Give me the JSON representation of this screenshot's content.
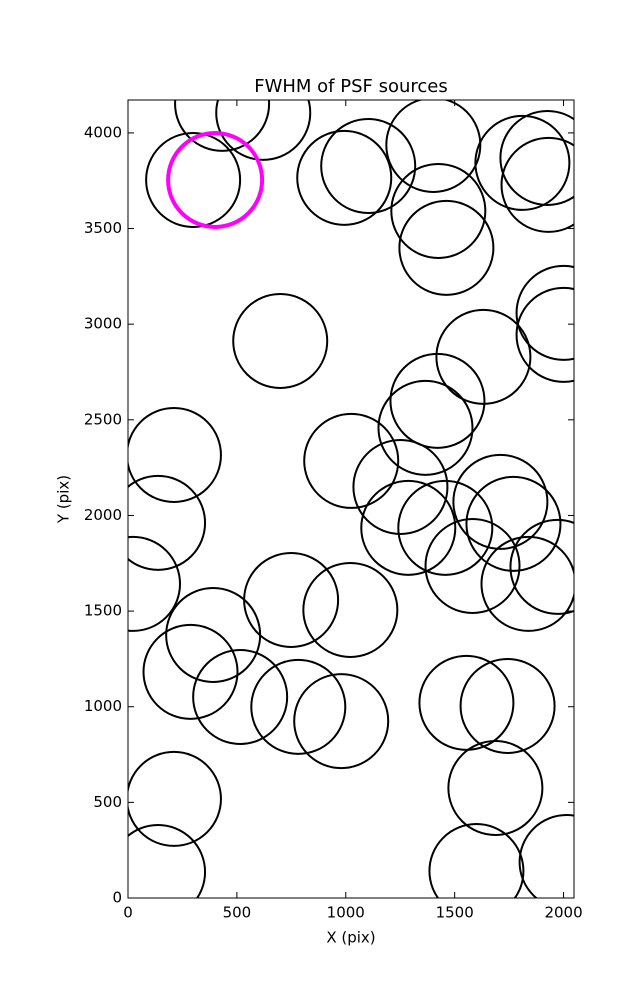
{
  "chart_data": {
    "type": "scatter",
    "title": "FWHM of PSF sources",
    "xlabel": "X (pix)",
    "ylabel": "Y (pix)",
    "xlim": [
      0,
      2048
    ],
    "ylim": [
      0,
      4172
    ],
    "xticks": [
      0,
      500,
      1000,
      1500,
      2000
    ],
    "yticks": [
      0,
      500,
      1000,
      1500,
      2000,
      2500,
      3000,
      3500,
      4000
    ],
    "series": [
      {
        "color": "#000000",
        "x": [
          432,
          621,
          299,
          993,
          1103,
          1402,
          1425,
          1462,
          1811,
          1926,
          1931,
          2000,
          2000,
          699,
          1632,
          1421,
          1366,
          211,
          1025,
          1251,
          138,
          1710,
          1770,
          1287,
          1457,
          1582,
          1972,
          1839,
          23,
          749,
          1021,
          391,
          287,
          515,
          782,
          979,
          1554,
          1743,
          1687,
          211,
          138,
          1600,
          2014
        ],
        "values": [
          4152,
          4105,
          3754,
          3765,
          3827,
          3937,
          3592,
          3399,
          3843,
          3869,
          3728,
          3059,
          2944,
          2912,
          2829,
          2599,
          2458,
          2316,
          2285,
          2149,
          1961,
          2071,
          1956,
          1935,
          1935,
          1736,
          1731,
          1642,
          1642,
          1558,
          1506,
          1375,
          1182,
          1051,
          999,
          925,
          1020,
          1004,
          575,
          518,
          136,
          141,
          188
        ]
      },
      {
        "color": "#ff00ff",
        "x": [
          400
        ],
        "values": [
          3754
        ]
      }
    ]
  }
}
